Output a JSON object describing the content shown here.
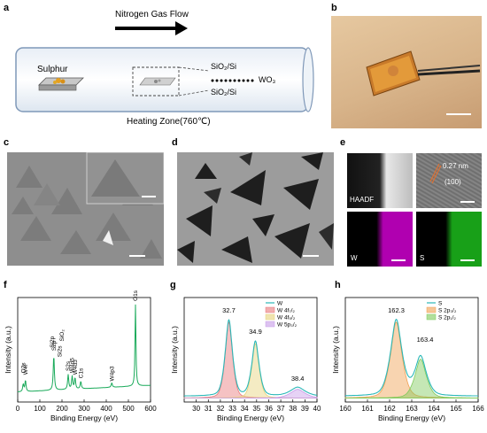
{
  "panels": {
    "a": {
      "label": "a",
      "flow_label": "Nitrogen Gas Flow",
      "source_label": "Sulphur",
      "substrate_top": "SiO₂/Si",
      "precursor": "WO₃",
      "substrate_bottom": "SiO₂/Si",
      "zone_label": "Heating Zone(760℃)"
    },
    "b": {
      "label": "b"
    },
    "c": {
      "label": "c"
    },
    "d": {
      "label": "d"
    },
    "e": {
      "label": "e",
      "haadf_label": "HAADF",
      "spacing": "0.27 nm",
      "plane": "(100)",
      "map_w": "W",
      "map_s": "S",
      "colors": {
        "w_map": "#b000b0",
        "s_map": "#18a018"
      }
    },
    "f": {
      "label": "f",
      "chart_data": {
        "type": "line",
        "xlabel": "Binding Energy (eV)",
        "ylabel": "Intensity (a.u.)",
        "xlim": [
          0,
          600
        ],
        "xticks": [
          0,
          100,
          200,
          300,
          400,
          500,
          600
        ],
        "color": "#1aaa5a",
        "peaks": [
          {
            "label": "O2s",
            "x": 25,
            "h": 0.08
          },
          {
            "label": "W4f",
            "x": 35,
            "h": 0.12
          },
          {
            "label": "S2p",
            "x": 163,
            "h": 0.38
          },
          {
            "label": "S2s",
            "x": 228,
            "h": 0.16
          },
          {
            "label": "W4d5",
            "x": 246,
            "h": 0.14
          },
          {
            "label": "W4d3",
            "x": 259,
            "h": 0.12
          },
          {
            "label": "C1s",
            "x": 285,
            "h": 0.08
          },
          {
            "label": "W4p3",
            "x": 425,
            "h": 0.05
          },
          {
            "label": "O1s",
            "x": 532,
            "h": 1.0
          }
        ],
        "extra_labels": [
          "Si2p",
          "Si2s",
          "SiO₂"
        ]
      }
    },
    "g": {
      "label": "g",
      "chart_data": {
        "type": "line",
        "xlabel": "Binding Energy (eV)",
        "ylabel": "Intensity (a.u.)",
        "xlim": [
          29,
          40
        ],
        "xticks": [
          30,
          31,
          32,
          33,
          34,
          35,
          36,
          37,
          38,
          39,
          40
        ],
        "peak_labels": [
          "32.7",
          "34.9",
          "38.4"
        ],
        "series": [
          {
            "name": "W",
            "color": "#2bb8b8"
          },
          {
            "name": "W 4f₇/₂",
            "color": "#e8787a",
            "center": 32.7,
            "amp": 0.78,
            "width": 0.35
          },
          {
            "name": "W 4f₅/₂",
            "color": "#e6d27a",
            "center": 34.9,
            "amp": 0.56,
            "width": 0.35
          },
          {
            "name": "W 5p₃/₂",
            "color": "#c79be8",
            "center": 38.4,
            "amp": 0.09,
            "width": 0.7
          }
        ]
      }
    },
    "h": {
      "label": "h",
      "chart_data": {
        "type": "line",
        "xlabel": "Binding Energy (eV)",
        "ylabel": "Intensity (a.u.)",
        "xlim": [
          160,
          166
        ],
        "xticks": [
          160,
          161,
          162,
          163,
          164,
          165,
          166
        ],
        "peak_labels": [
          "162.3",
          "163.4"
        ],
        "series": [
          {
            "name": "S",
            "color": "#2bb8b8"
          },
          {
            "name": "S 2p₃/₂",
            "color": "#f0a050",
            "center": 162.3,
            "amp": 0.78,
            "width": 0.3
          },
          {
            "name": "S 2p₁/₂",
            "color": "#7fca5a",
            "center": 163.4,
            "amp": 0.4,
            "width": 0.3
          }
        ]
      }
    }
  }
}
